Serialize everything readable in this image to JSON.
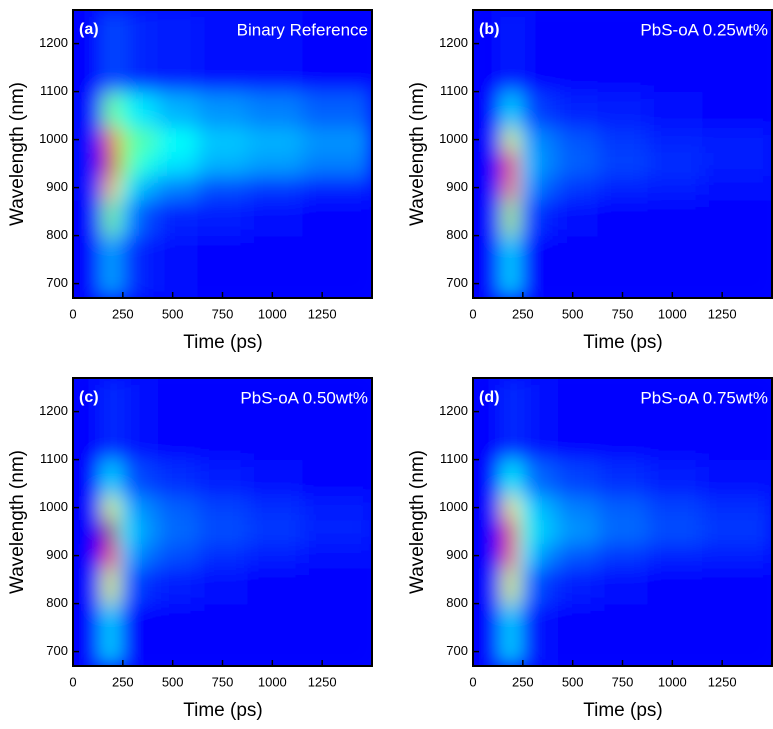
{
  "chart_data": [
    {
      "type": "heatmap",
      "panel": "(a)",
      "title": "Binary Reference",
      "x_label": "Time (ps)",
      "y_label": "Wavelength (nm)",
      "colormap": "jet",
      "xlim": [
        0,
        1500
      ],
      "ylim": [
        670,
        1270
      ],
      "xticks": [
        0,
        250,
        500,
        750,
        1000,
        1250
      ],
      "yticks": [
        700,
        800,
        900,
        1000,
        1100,
        1200
      ],
      "x": [
        100,
        200,
        250,
        350,
        500,
        750,
        1000,
        1300
      ],
      "y": [
        750,
        850,
        900,
        950,
        1000,
        1050,
        1150
      ],
      "z": [
        [
          0.13,
          0.3,
          0.2,
          0.15,
          0.14,
          0.13,
          0.13,
          0.13
        ],
        [
          0.13,
          0.5,
          0.3,
          0.2,
          0.16,
          0.15,
          0.14,
          0.13
        ],
        [
          0.14,
          0.7,
          0.4,
          0.3,
          0.25,
          0.2,
          0.18,
          0.16
        ],
        [
          0.14,
          0.9,
          0.5,
          0.4,
          0.35,
          0.3,
          0.28,
          0.25
        ],
        [
          0.14,
          0.8,
          0.5,
          0.45,
          0.38,
          0.32,
          0.3,
          0.27
        ],
        [
          0.14,
          0.5,
          0.4,
          0.35,
          0.3,
          0.27,
          0.25,
          0.22
        ],
        [
          0.13,
          0.2,
          0.18,
          0.16,
          0.15,
          0.14,
          0.14,
          0.13
        ]
      ]
    },
    {
      "type": "heatmap",
      "panel": "(b)",
      "title": "PbS-oA 0.25wt%",
      "x_label": "Time (ps)",
      "y_label": "Wavelength (nm)",
      "colormap": "jet",
      "xlim": [
        0,
        1500
      ],
      "ylim": [
        670,
        1270
      ],
      "xticks": [
        0,
        250,
        500,
        750,
        1000,
        1250
      ],
      "yticks": [
        700,
        800,
        900,
        1000,
        1100,
        1200
      ],
      "x": [
        100,
        200,
        250,
        350,
        500,
        750,
        1000,
        1300
      ],
      "y": [
        750,
        850,
        900,
        950,
        1000,
        1050,
        1150
      ],
      "z": [
        [
          0.13,
          0.35,
          0.15,
          0.13,
          0.13,
          0.13,
          0.13,
          0.13
        ],
        [
          0.13,
          0.55,
          0.22,
          0.16,
          0.14,
          0.13,
          0.13,
          0.13
        ],
        [
          0.13,
          0.75,
          0.3,
          0.22,
          0.18,
          0.16,
          0.15,
          0.14
        ],
        [
          0.13,
          0.85,
          0.33,
          0.26,
          0.22,
          0.19,
          0.17,
          0.15
        ],
        [
          0.13,
          0.6,
          0.3,
          0.25,
          0.21,
          0.18,
          0.16,
          0.15
        ],
        [
          0.13,
          0.35,
          0.22,
          0.18,
          0.16,
          0.15,
          0.14,
          0.13
        ],
        [
          0.13,
          0.16,
          0.14,
          0.13,
          0.13,
          0.13,
          0.13,
          0.13
        ]
      ]
    },
    {
      "type": "heatmap",
      "panel": "(c)",
      "title": "PbS-oA 0.50wt%",
      "x_label": "Time (ps)",
      "y_label": "Wavelength (nm)",
      "colormap": "jet",
      "xlim": [
        0,
        1500
      ],
      "ylim": [
        670,
        1270
      ],
      "xticks": [
        0,
        250,
        500,
        750,
        1000,
        1250
      ],
      "yticks": [
        700,
        800,
        900,
        1000,
        1100,
        1200
      ],
      "x": [
        100,
        200,
        250,
        350,
        500,
        750,
        1000,
        1300
      ],
      "y": [
        750,
        850,
        900,
        950,
        1000,
        1050,
        1150
      ],
      "z": [
        [
          0.13,
          0.35,
          0.15,
          0.13,
          0.13,
          0.13,
          0.13,
          0.13
        ],
        [
          0.13,
          0.6,
          0.24,
          0.17,
          0.15,
          0.14,
          0.13,
          0.13
        ],
        [
          0.13,
          0.85,
          0.32,
          0.24,
          0.2,
          0.17,
          0.15,
          0.14
        ],
        [
          0.13,
          0.95,
          0.36,
          0.28,
          0.23,
          0.2,
          0.18,
          0.16
        ],
        [
          0.13,
          0.6,
          0.32,
          0.26,
          0.22,
          0.19,
          0.17,
          0.15
        ],
        [
          0.13,
          0.35,
          0.23,
          0.19,
          0.17,
          0.15,
          0.14,
          0.13
        ],
        [
          0.13,
          0.17,
          0.15,
          0.14,
          0.13,
          0.13,
          0.13,
          0.13
        ]
      ]
    },
    {
      "type": "heatmap",
      "panel": "(d)",
      "title": "PbS-oA 0.75wt%",
      "x_label": "Time (ps)",
      "y_label": "Wavelength (nm)",
      "colormap": "jet",
      "xlim": [
        0,
        1500
      ],
      "ylim": [
        670,
        1270
      ],
      "xticks": [
        0,
        250,
        500,
        750,
        1000,
        1250
      ],
      "yticks": [
        700,
        800,
        900,
        1000,
        1100,
        1200
      ],
      "x": [
        100,
        200,
        250,
        350,
        500,
        750,
        1000,
        1300
      ],
      "y": [
        750,
        850,
        900,
        950,
        1000,
        1050,
        1150
      ],
      "z": [
        [
          0.13,
          0.35,
          0.17,
          0.14,
          0.13,
          0.13,
          0.13,
          0.13
        ],
        [
          0.13,
          0.6,
          0.26,
          0.18,
          0.15,
          0.14,
          0.13,
          0.13
        ],
        [
          0.13,
          0.8,
          0.36,
          0.26,
          0.21,
          0.18,
          0.16,
          0.15
        ],
        [
          0.13,
          0.88,
          0.4,
          0.32,
          0.27,
          0.23,
          0.2,
          0.18
        ],
        [
          0.13,
          0.65,
          0.36,
          0.3,
          0.25,
          0.22,
          0.19,
          0.17
        ],
        [
          0.13,
          0.38,
          0.26,
          0.22,
          0.19,
          0.17,
          0.15,
          0.14
        ],
        [
          0.13,
          0.17,
          0.15,
          0.14,
          0.13,
          0.13,
          0.13,
          0.13
        ]
      ]
    }
  ]
}
